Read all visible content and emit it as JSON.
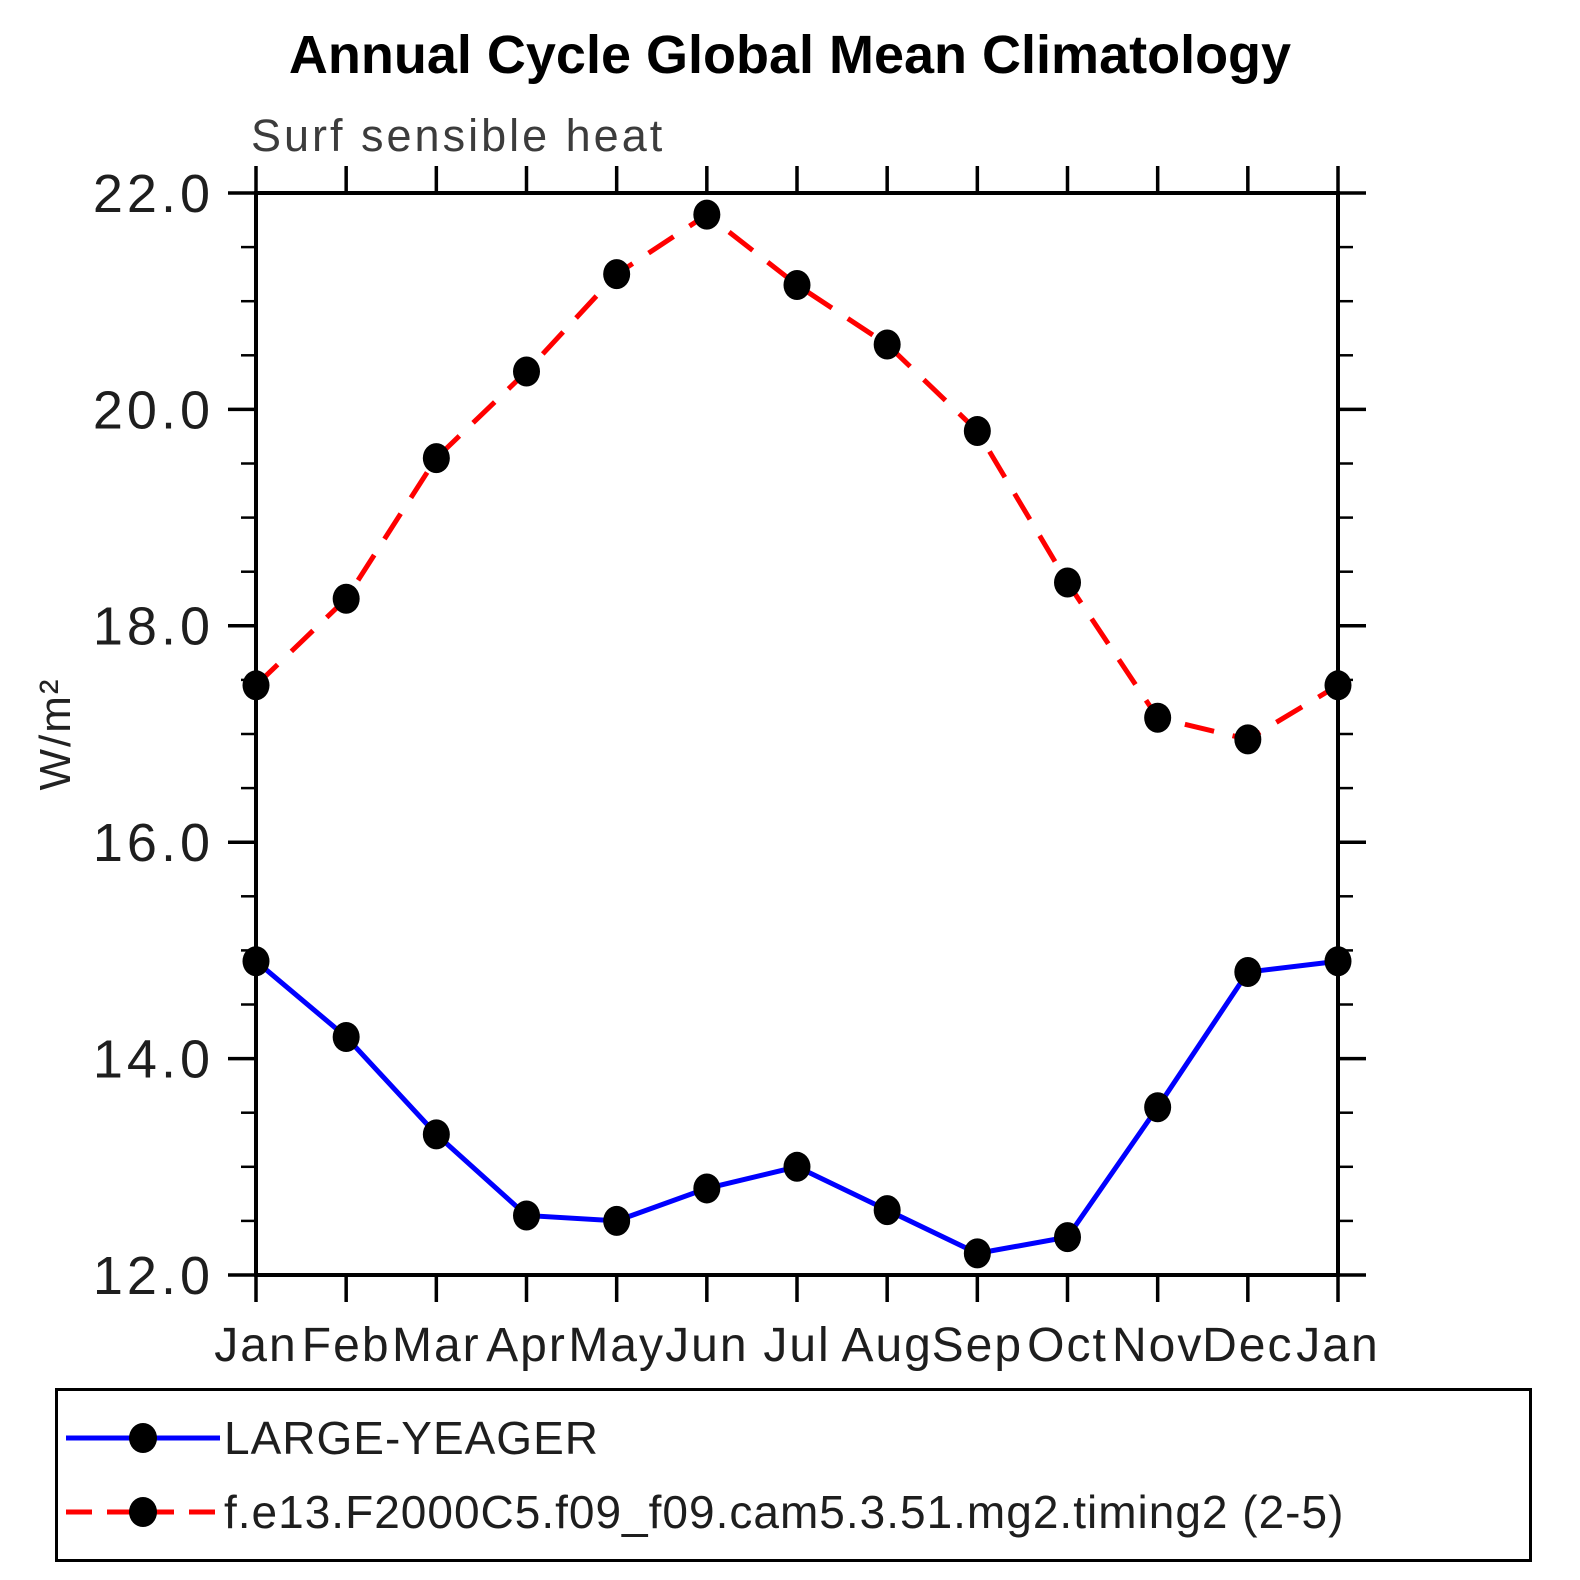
{
  "header": {
    "title": "Annual Cycle Global Mean Climatology",
    "subtitle": "Surf sensible heat"
  },
  "chart_data": {
    "type": "line",
    "title": "Annual Cycle Global Mean Climatology",
    "subtitle": "Surf sensible heat",
    "xlabel": "",
    "ylabel": "W/m²",
    "x_categories": [
      "Jan",
      "Feb",
      "Mar",
      "Apr",
      "May",
      "Jun",
      "Jul",
      "Aug",
      "Sep",
      "Oct",
      "Nov",
      "Dec",
      "Jan"
    ],
    "ylim": [
      12.0,
      22.0
    ],
    "ytick_values": [
      12,
      14,
      16,
      18,
      20,
      22
    ],
    "ytick_labels": [
      "12.0",
      "14.0",
      "16.0",
      "18.0",
      "20.0",
      "22.0"
    ],
    "minor_tick_step": 0.5,
    "grid": false,
    "legend_position": "bottom",
    "marker": "filled-circle",
    "marker_color": "#000000",
    "axis_color": "#000000",
    "series": [
      {
        "name": "LARGE-YEAGER",
        "color": "#0000ff",
        "style": "solid",
        "values": [
          14.9,
          14.2,
          13.3,
          12.55,
          12.5,
          12.8,
          13.0,
          12.6,
          12.2,
          12.35,
          13.55,
          14.8,
          14.9
        ]
      },
      {
        "name": "f.e13.F2000C5.f09_f09.cam5.3.51.mg2.timing2 (2-5)",
        "color": "#ff0000",
        "style": "dashed",
        "values": [
          17.45,
          18.25,
          19.55,
          20.35,
          21.25,
          21.8,
          21.15,
          20.6,
          19.8,
          18.4,
          17.15,
          16.95,
          17.45
        ]
      }
    ]
  }
}
